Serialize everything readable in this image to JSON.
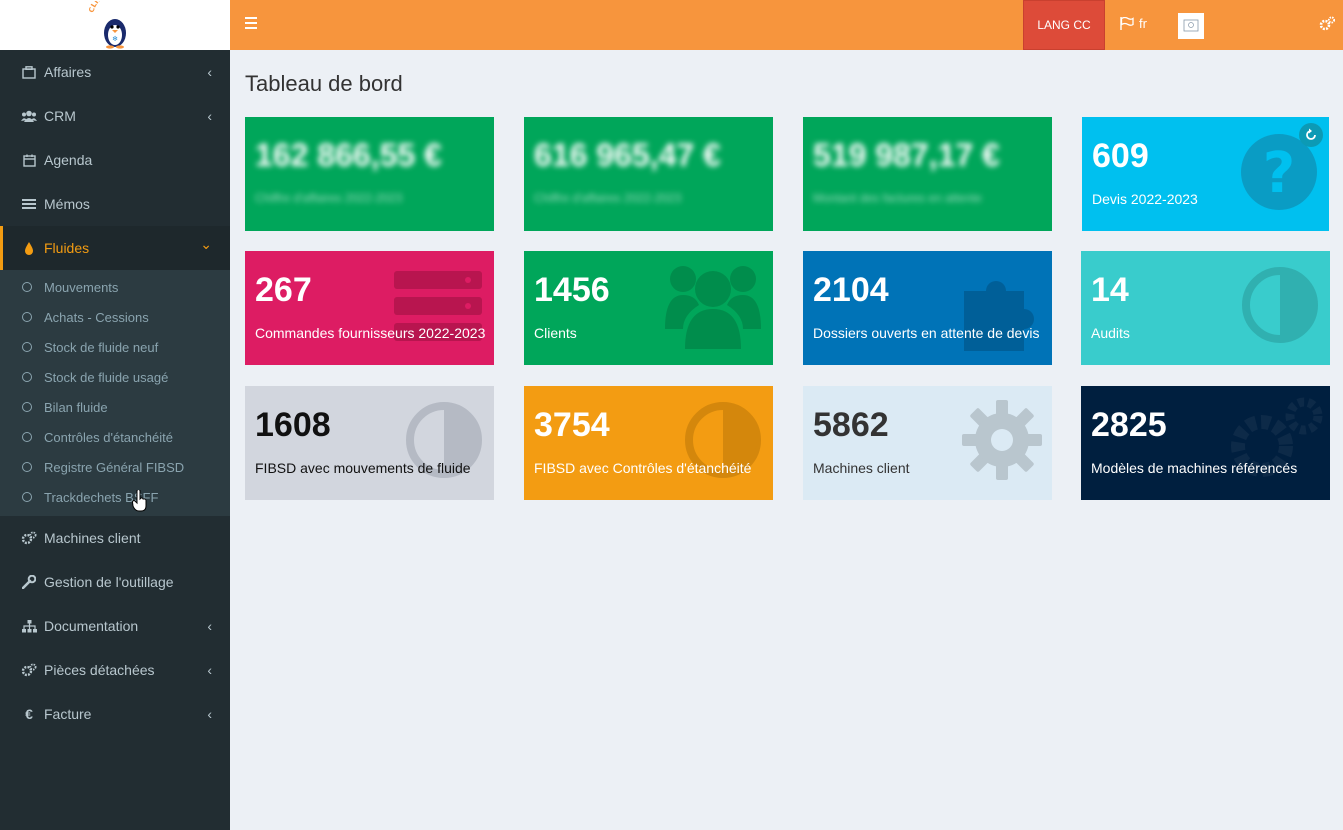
{
  "brand": {
    "logo_text": "CLIM FRAIS"
  },
  "sidebar": {
    "items": [
      {
        "label": "Affaires",
        "icon": "briefcase-icon",
        "chevron": "‹"
      },
      {
        "label": "CRM",
        "icon": "users-icon",
        "chevron": "‹"
      },
      {
        "label": "Agenda",
        "icon": "calendar-icon"
      },
      {
        "label": "Mémos",
        "icon": "list-icon"
      },
      {
        "label": "Fluides",
        "icon": "drop-icon",
        "chevron": "⌄",
        "active": true
      }
    ],
    "fluides_sub": [
      "Mouvements",
      "Achats - Cessions",
      "Stock de fluide neuf",
      "Stock de fluide usagé",
      "Bilan fluide",
      "Contrôles d'étanchéité",
      "Registre Général FIBSD",
      "Trackdechets BSFF"
    ],
    "items_after": [
      {
        "label": "Machines client",
        "icon": "cogs-icon"
      },
      {
        "label": "Gestion de l'outillage",
        "icon": "wrench-icon"
      },
      {
        "label": "Documentation",
        "icon": "sitemap-icon",
        "chevron": "‹"
      },
      {
        "label": "Pièces détachées",
        "icon": "cogs-icon",
        "chevron": "‹"
      },
      {
        "label": "Facture",
        "icon": "euro-icon",
        "chevron": "‹"
      }
    ]
  },
  "header": {
    "lang_button": "LANG CC",
    "lang": "fr"
  },
  "page": {
    "title": "Tableau de bord"
  },
  "boxes": {
    "row1": [
      {
        "value": "162 866,55 €",
        "label": "Chiffre d'affaires 2022-2023",
        "color": "#00a65a",
        "blurred": true
      },
      {
        "value": "616 965,47 €",
        "label": "Chiffre d'affaires 2022-2023",
        "color": "#00a65a",
        "blurred": true
      },
      {
        "value": "519 987,17 €",
        "label": "Montant des factures en attente",
        "color": "#00a65a",
        "blurred": true
      },
      {
        "value": "609",
        "label": "Devis 2022-2023",
        "color": "#00c0ef"
      }
    ],
    "row2": [
      {
        "value": "267",
        "label": "Commandes fournisseurs 2022-2023",
        "color": "#dd1c63"
      },
      {
        "value": "1456",
        "label": "Clients",
        "color": "#00a65a"
      },
      {
        "value": "2104",
        "label": "Dossiers ouverts en attente de devis",
        "color": "#0073b7"
      },
      {
        "value": "14",
        "label": "Audits",
        "color": "#39cccc"
      }
    ],
    "row3": [
      {
        "value": "1608",
        "label": "FIBSD avec mouvements de fluide",
        "color": "#d2d6de"
      },
      {
        "value": "3754",
        "label": "FIBSD avec Contrôles d'étanchéité",
        "color": "#f39c12"
      },
      {
        "value": "5862",
        "label": "Machines client",
        "color": "#dbeaf4"
      },
      {
        "value": "2825",
        "label": "Modèles de machines référencés",
        "color": "#001f3f"
      }
    ]
  }
}
